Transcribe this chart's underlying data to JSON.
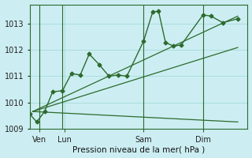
{
  "background_color": "#cceef2",
  "grid_color": "#aadddd",
  "line_color": "#2d6a2d",
  "xlabel": "Pression niveau de la mer( hPa )",
  "ylim": [
    1009.0,
    1013.75
  ],
  "yticks": [
    1009,
    1010,
    1011,
    1012,
    1013
  ],
  "xlim": [
    0,
    22
  ],
  "day_labels": [
    "Ven",
    "Lun",
    "Sam",
    "Dim"
  ],
  "day_positions": [
    1,
    3.5,
    11.5,
    17.5
  ],
  "vline_positions": [
    1,
    3.3,
    11.5,
    17.5
  ],
  "main_x": [
    0,
    0.7,
    1.5,
    2.3,
    3.3,
    4.2,
    5.1,
    6.0,
    7.0,
    8.0,
    8.9,
    9.8,
    11.5,
    12.4,
    13.0,
    13.7,
    14.5,
    15.3,
    17.5,
    18.3,
    19.5,
    21.0
  ],
  "main_y": [
    1009.55,
    1009.25,
    1009.65,
    1010.4,
    1010.45,
    1011.1,
    1011.05,
    1011.85,
    1011.45,
    1011.0,
    1011.05,
    1011.0,
    1012.35,
    1013.45,
    1013.5,
    1012.3,
    1012.15,
    1012.2,
    1013.35,
    1013.3,
    1013.05,
    1013.2
  ],
  "trend1_x": [
    0.3,
    21.0
  ],
  "trend1_y": [
    1009.65,
    1013.3
  ],
  "trend2_x": [
    0.3,
    21.0
  ],
  "trend2_y": [
    1009.65,
    1012.1
  ],
  "trend3_x": [
    0.3,
    21.0
  ],
  "trend3_y": [
    1009.65,
    1009.25
  ],
  "figsize": [
    3.2,
    2.0
  ],
  "dpi": 100
}
